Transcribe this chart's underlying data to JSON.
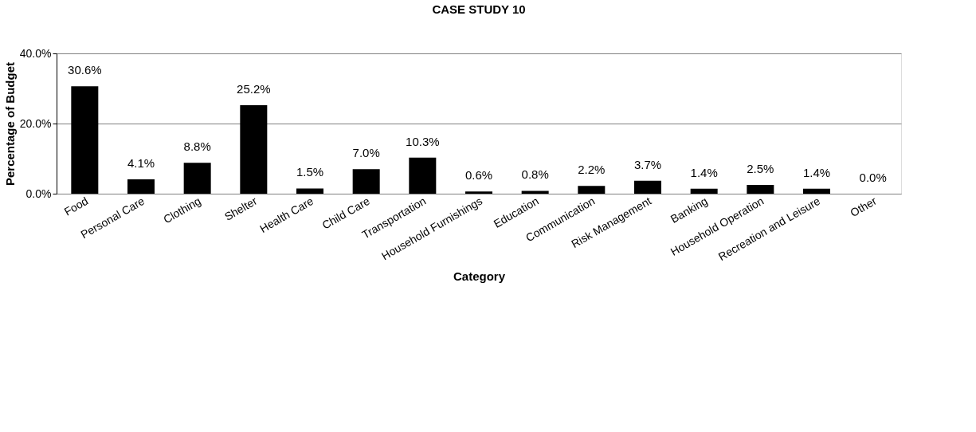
{
  "chart_data": {
    "type": "bar",
    "title": "CASE STUDY 10",
    "xlabel": "Category",
    "ylabel": "Percentage of Budget",
    "categories": [
      "Food",
      "Personal Care",
      "Clothing",
      "Shelter",
      "Health Care",
      "Child Care",
      "Transportation",
      "Household Furnishings",
      "Education",
      "Communication",
      "Risk Management",
      "Banking",
      "Household Operation",
      "Recreation and Leisure",
      "Other"
    ],
    "values": [
      30.6,
      4.1,
      8.8,
      25.2,
      1.5,
      7.0,
      10.3,
      0.6,
      0.8,
      2.2,
      3.7,
      1.4,
      2.5,
      1.4,
      0.0
    ],
    "value_labels": [
      "30.6%",
      "4.1%",
      "8.8%",
      "25.2%",
      "1.5%",
      "7.0%",
      "10.3%",
      "0.6%",
      "0.8%",
      "2.2%",
      "3.7%",
      "1.4%",
      "2.5%",
      "1.4%",
      "0.0%"
    ],
    "color": "#000000",
    "ylim": [
      0,
      40
    ],
    "yticks": [
      {
        "value": 0,
        "label": "0.0%"
      },
      {
        "value": 20,
        "label": "20.0%"
      },
      {
        "value": 40,
        "label": "40.0%"
      }
    ],
    "grid": "y"
  }
}
